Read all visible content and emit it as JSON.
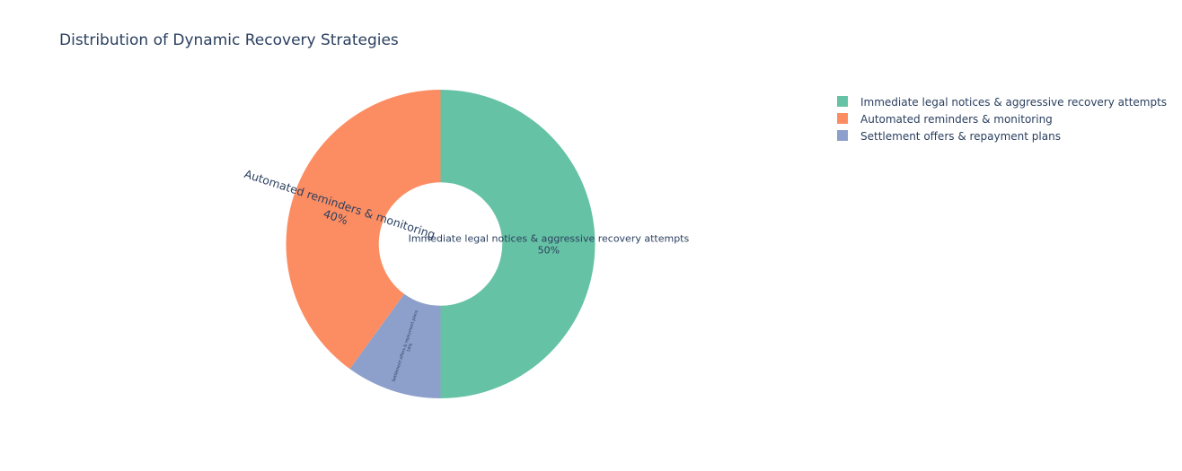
{
  "chart_data": {
    "type": "pie",
    "hole": 0.4,
    "title": "Distribution of Dynamic Recovery Strategies",
    "legend_position": "top-right",
    "slices": [
      {
        "label": "Immediate legal notices & aggressive recovery attempts",
        "value": 50,
        "percent_label": "50%",
        "color": "#66c2a5"
      },
      {
        "label": "Automated reminders & monitoring",
        "value": 40,
        "percent_label": "40%",
        "color": "#fc8d62"
      },
      {
        "label": "Settlement offers & repayment plans",
        "value": 10,
        "percent_label": "10%",
        "color": "#8da0cb"
      }
    ]
  }
}
